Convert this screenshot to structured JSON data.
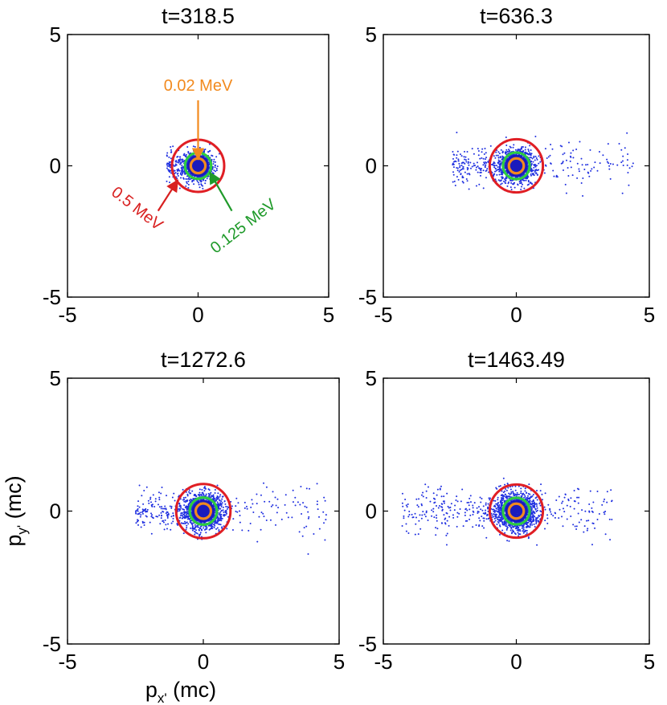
{
  "chart_data": [
    {
      "type": "scatter",
      "title": "t=318.5",
      "xlim": [
        -5,
        5
      ],
      "ylim": [
        -5,
        5
      ],
      "xticks": [
        "-5",
        "0",
        "5"
      ],
      "yticks": [
        "5",
        "0",
        "-5"
      ],
      "grid": false,
      "circles_mev": [
        0.02,
        0.125,
        0.5
      ],
      "circle_radii_mc": [
        0.28,
        0.5,
        1.0
      ],
      "scatter": {
        "spread_x": 0.45,
        "spread_y": 0.4,
        "tail_left": 1.2,
        "tail_right": 0.3,
        "count": 1400
      },
      "annotations": [
        {
          "text": "0.02 MeV",
          "color": "#f28a1e",
          "x": 0,
          "y": 2.25,
          "tx": 0,
          "ty": 0.25
        },
        {
          "text": "0.125 MeV",
          "color": "#1f9a2a",
          "x": 1.6,
          "y": -1.9,
          "tx": 0.45,
          "ty": -0.25
        },
        {
          "text": "0.5 MeV",
          "color": "#d81f1f",
          "x": -1.9,
          "y": -1.9,
          "tx": -0.78,
          "ty": -0.55
        }
      ]
    },
    {
      "type": "scatter",
      "title": "t=636.3",
      "xlim": [
        -5,
        5
      ],
      "ylim": [
        -5,
        5
      ],
      "xticks": [
        "-5",
        "0",
        "5"
      ],
      "yticks": [
        "5",
        "0",
        "-5"
      ],
      "grid": false,
      "circles_mev": [
        0.02,
        0.125,
        0.5
      ],
      "circle_radii_mc": [
        0.28,
        0.5,
        1.0
      ],
      "scatter": {
        "spread_x": 0.55,
        "spread_y": 0.5,
        "tail_left": 2.4,
        "tail_right": 4.4,
        "count": 1500
      },
      "annotations": []
    },
    {
      "type": "scatter",
      "title": "t=1272.6",
      "xlim": [
        -5,
        5
      ],
      "ylim": [
        -5,
        5
      ],
      "xticks": [
        "-5",
        "0",
        "5"
      ],
      "yticks": [
        "5",
        "0",
        "-5"
      ],
      "xlabel": "p",
      "xlabel_sub": "x'",
      "xlabel_unit": " (mc)",
      "ylabel": "p",
      "ylabel_sub": "y'",
      "ylabel_unit": " (mc)",
      "grid": false,
      "circles_mev": [
        0.02,
        0.125,
        0.5
      ],
      "circle_radii_mc": [
        0.28,
        0.5,
        1.0
      ],
      "scatter": {
        "spread_x": 0.6,
        "spread_y": 0.55,
        "tail_left": 2.5,
        "tail_right": 4.6,
        "count": 1600
      },
      "annotations": []
    },
    {
      "type": "scatter",
      "title": "t=1463.49",
      "xlim": [
        -5,
        5
      ],
      "ylim": [
        -5,
        5
      ],
      "xticks": [
        "-5",
        "0",
        "5"
      ],
      "yticks": [
        "5",
        "0",
        "-5"
      ],
      "grid": false,
      "circles_mev": [
        0.02,
        0.125,
        0.5
      ],
      "circle_radii_mc": [
        0.28,
        0.5,
        1.0
      ],
      "scatter": {
        "spread_x": 0.65,
        "spread_y": 0.6,
        "tail_left": 4.3,
        "tail_right": 3.6,
        "count": 1700
      },
      "annotations": []
    }
  ],
  "colors": {
    "scatter": "#1f2fe0",
    "core": "#1a1ab8",
    "ring_small": "#f28a1e",
    "ring_mid": "#2ecc40",
    "ring_big": "#e01e24",
    "axis": "#000000"
  }
}
